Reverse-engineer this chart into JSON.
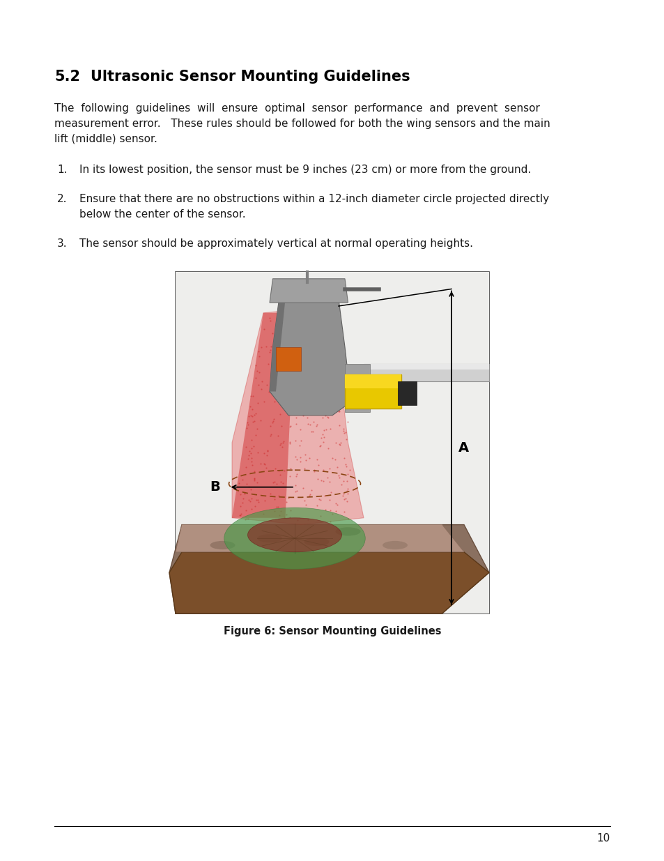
{
  "title_num": "5.2",
  "title_text": "Ultrasonic Sensor Mounting Guidelines",
  "body_lines": [
    "The  following  guidelines  will  ensure  optimal  sensor  performance  and  prevent  sensor",
    "measurement error.   These rules should be followed for both the wing sensors and the main",
    "lift (middle) sensor."
  ],
  "item1_num": "1.",
  "item1_text": "In its lowest position, the sensor must be 9 inches (23 cm) or more from the ground.",
  "item2_num": "2.",
  "item2_line1": "Ensure that there are no obstructions within a 12-inch diameter circle projected directly",
  "item2_line2": "below the center of the sensor.",
  "item3_num": "3.",
  "item3_text": "The sensor should be approximately vertical at normal operating heights.",
  "figure_caption": "Figure 6: Sensor Mounting Guidelines",
  "page_number": "10",
  "bg_color": "#ffffff",
  "text_color": "#1a1a1a",
  "title_color": "#000000",
  "font_size_title": 15,
  "font_size_body": 11,
  "font_size_caption": 10.5,
  "font_size_page": 11
}
